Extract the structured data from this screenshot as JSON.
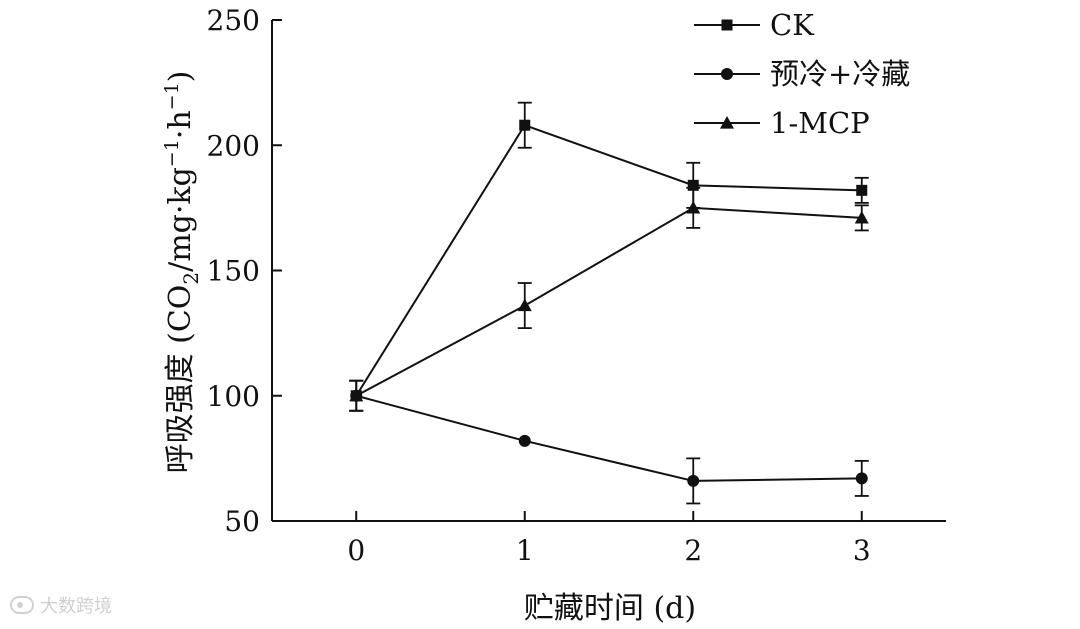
{
  "chart_data": {
    "type": "line",
    "title": "",
    "xlabel": "贮藏时间 (d)",
    "ylabel": {
      "prefix": "呼吸强度 (CO",
      "sub": "2",
      "middle": "/mg·kg",
      "sup1": "−1",
      "middle2": "·h",
      "sup2": "−1",
      "suffix": ")"
    },
    "x": [
      0,
      1,
      2,
      3
    ],
    "xticks": [
      0,
      1,
      2,
      3
    ],
    "xtick_labels": [
      "0",
      "1",
      "2",
      "3"
    ],
    "xlim": [
      -0.5,
      3.5
    ],
    "yticks": [
      50,
      100,
      150,
      200,
      250
    ],
    "ytick_labels": [
      "50",
      "100",
      "150",
      "200",
      "250"
    ],
    "ylim": [
      50,
      250
    ],
    "grid": false,
    "legend_position": "top-right",
    "series": [
      {
        "name": "CK",
        "marker": "square",
        "values": [
          100,
          208,
          184,
          182
        ],
        "errors": [
          6,
          9,
          9,
          5
        ]
      },
      {
        "name": "预冷+冷藏",
        "marker": "circle",
        "values": [
          100,
          82,
          66,
          67
        ],
        "errors": [
          6,
          0,
          9,
          7
        ]
      },
      {
        "name": "1-MCP",
        "marker": "triangle",
        "values": [
          100,
          136,
          175,
          171
        ],
        "errors": [
          6,
          9,
          8,
          5
        ]
      }
    ]
  },
  "watermark": {
    "text": "大数跨境"
  }
}
